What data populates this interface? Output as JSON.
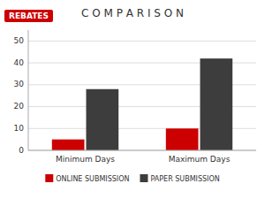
{
  "chart_data": {
    "type": "bar",
    "title": "C O M P A R I S O N",
    "categories": [
      "Minimum Days",
      "Maximum Days"
    ],
    "series": [
      {
        "name": "ONLINE SUBMISSION",
        "color": "#cc0000",
        "values": [
          5,
          10
        ]
      },
      {
        "name": "PAPER SUBMISSION",
        "color": "#3d3d3d",
        "values": [
          28,
          42
        ]
      }
    ],
    "ylim": [
      0,
      55
    ],
    "yticks": [
      0,
      10,
      20,
      30,
      40,
      50
    ],
    "grid": true,
    "legend": "bottom",
    "annotations": [
      "REBATES"
    ]
  }
}
